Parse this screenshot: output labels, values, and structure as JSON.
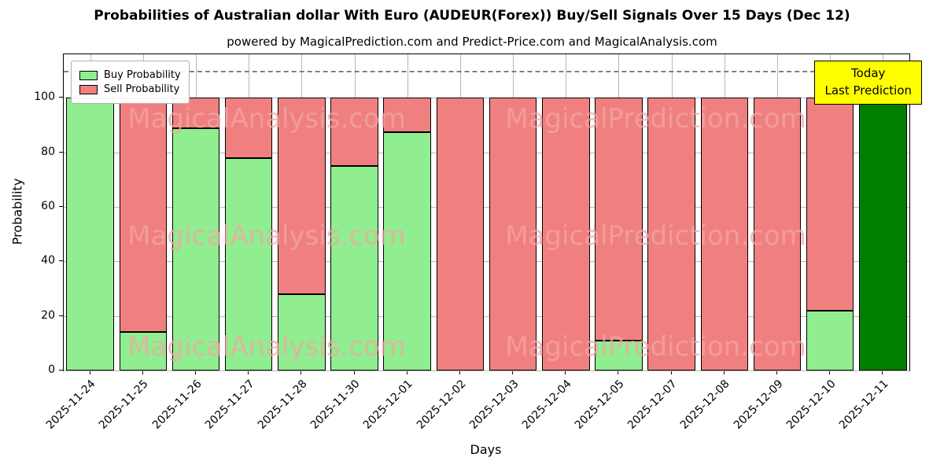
{
  "title": "Probabilities of Australian dollar With Euro (AUDEUR(Forex)) Buy/Sell Signals Over 15 Days (Dec 12)",
  "subtitle": "powered by MagicalPrediction.com and Predict-Price.com and MagicalAnalysis.com",
  "chart_data": {
    "type": "bar",
    "stacked": true,
    "title": "Probabilities of Australian dollar With Euro (AUDEUR(Forex)) Buy/Sell Signals Over 15 Days (Dec 12)",
    "subtitle": "powered by MagicalPrediction.com and Predict-Price.com and MagicalAnalysis.com",
    "xlabel": "Days",
    "ylabel": "Probability",
    "categories": [
      "2025-11-24",
      "2025-11-25",
      "2025-11-26",
      "2025-11-27",
      "2025-11-28",
      "2025-11-30",
      "2025-12-01",
      "2025-12-02",
      "2025-12-03",
      "2025-12-04",
      "2025-12-05",
      "2025-12-07",
      "2025-12-08",
      "2025-12-09",
      "2025-12-10",
      "2025-12-11"
    ],
    "series": [
      {
        "name": "Buy Probability",
        "color": "#90ee90",
        "values": [
          100,
          14,
          89,
          78,
          28,
          75,
          87.5,
          0,
          0,
          0,
          11,
          0,
          0,
          0,
          22,
          100
        ]
      },
      {
        "name": "Sell Probability",
        "color": "#f08080",
        "values": [
          0,
          86,
          11,
          22,
          72,
          25,
          12.5,
          100,
          100,
          100,
          89,
          100,
          100,
          100,
          78,
          0
        ]
      }
    ],
    "today_bar": {
      "index": 15,
      "color": "#008000"
    },
    "yticks": [
      0,
      20,
      40,
      60,
      80,
      100
    ],
    "ylim": [
      0,
      116
    ],
    "dashed_line_y": 110,
    "grid": true,
    "legend_position": "upper-left",
    "annotation": {
      "lines": [
        "Today",
        "Last Prediction"
      ],
      "background": "#ffff00"
    },
    "watermarks": [
      "MagicalAnalysis.com",
      "MagicalPrediction.com"
    ],
    "watermark_color": "#f4a4a4",
    "bar_edge_color": "#000000"
  }
}
